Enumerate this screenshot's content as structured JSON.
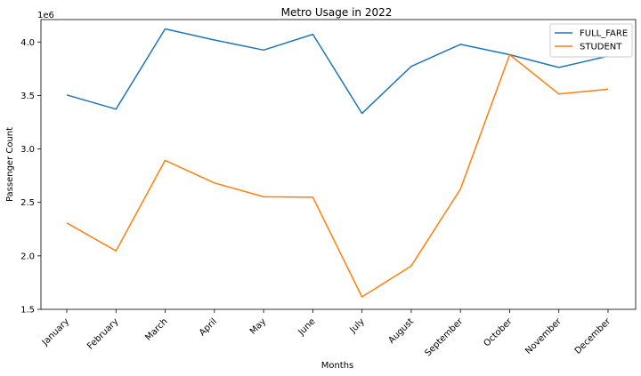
{
  "chart_data": {
    "type": "line",
    "title": "Metro Usage in 2022",
    "xlabel": "Months",
    "ylabel": "Passenger Count",
    "y_offset_label": "1e6",
    "categories": [
      "January",
      "February",
      "March",
      "April",
      "May",
      "June",
      "July",
      "August",
      "September",
      "October",
      "November",
      "December"
    ],
    "series": [
      {
        "name": "FULL_FARE",
        "color": "#1f77b4",
        "values": [
          3505000,
          3372000,
          4123000,
          4019000,
          3925000,
          4072000,
          3332000,
          3772000,
          3978000,
          3882000,
          3762000,
          3868000
        ]
      },
      {
        "name": "STUDENT",
        "color": "#ff7f0e",
        "values": [
          2308000,
          2046000,
          2893000,
          2682000,
          2552000,
          2548000,
          1616000,
          1906000,
          2625000,
          3882000,
          3514000,
          3558000
        ]
      }
    ],
    "ylim": [
      1500000,
      4210000
    ],
    "yticks": [
      1500000,
      2000000,
      2500000,
      3000000,
      3500000,
      4000000
    ],
    "ytick_labels": [
      "1.5",
      "2.0",
      "2.5",
      "3.0",
      "3.5",
      "4.0"
    ],
    "grid": false,
    "legend_position": "top-right"
  }
}
